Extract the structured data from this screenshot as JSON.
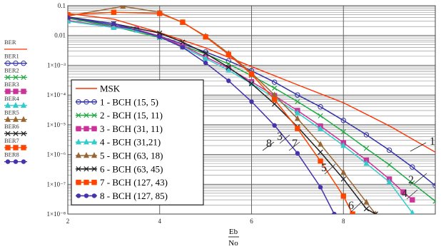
{
  "chart_data": {
    "type": "line",
    "title": "",
    "xlabel_numerator": "Eb",
    "xlabel_denominator": "No",
    "ylabel": "",
    "x_scale": "linear",
    "y_scale": "log",
    "xlim": [
      2,
      10
    ],
    "ylim": [
      1e-08,
      0.1
    ],
    "grid": true,
    "x_ticks": [
      2,
      4,
      6,
      8
    ],
    "x_tick_labels": [
      "2",
      "4",
      "6",
      "8"
    ],
    "y_ticks": [
      0.1,
      0.01,
      0.001,
      0.0001,
      1e-05,
      1e-06,
      1e-07,
      1e-08
    ],
    "y_tick_labels": [
      "0.1",
      "0.01",
      "1×10⁻³",
      "1×10⁻⁴",
      "1×10⁻⁵",
      "1×10⁻⁶",
      "1×10⁻⁷",
      "1×10⁻⁸"
    ],
    "legend_position": "lower-left",
    "left_labels": [
      "BER",
      "BER1",
      "BER2",
      "BER3",
      "BER4",
      "BER5",
      "BER6",
      "BER7",
      "BER8"
    ],
    "series": [
      {
        "name": "MSK",
        "color": "#ff3300",
        "marker": "none",
        "curve_label": "",
        "points": [
          [
            2,
            0.055
          ],
          [
            3,
            0.0355
          ],
          [
            4,
            0.0125
          ],
          [
            5,
            0.0038
          ],
          [
            6,
            0.0009
          ],
          [
            7,
            0.00022
          ],
          [
            8,
            5.5e-05
          ],
          [
            9,
            9.2e-06
          ],
          [
            10,
            1.2e-06
          ]
        ]
      },
      {
        "name": "1 - BCH (15, 5)",
        "color": "#3333aa",
        "marker": "circle",
        "curve_label": "1",
        "points": [
          [
            2,
            0.04
          ],
          [
            3,
            0.022
          ],
          [
            4,
            0.0095
          ],
          [
            5,
            0.0028
          ],
          [
            5.5,
            0.0014
          ],
          [
            6,
            0.00065
          ],
          [
            6.5,
            0.00027
          ],
          [
            7,
            0.0001
          ],
          [
            7.5,
            4e-05
          ],
          [
            8,
            1.4e-05
          ],
          [
            8.5,
            4.6e-06
          ],
          [
            9,
            1.4e-06
          ],
          [
            9.5,
            3.8e-07
          ],
          [
            10,
            9e-08
          ]
        ]
      },
      {
        "name": "2 - BCH (15, 11)",
        "color": "#22aa44",
        "marker": "x",
        "curve_label": "2",
        "points": [
          [
            2,
            0.038
          ],
          [
            3,
            0.02
          ],
          [
            4,
            0.0085
          ],
          [
            5,
            0.0024
          ],
          [
            5.5,
            0.0011
          ],
          [
            6,
            0.00045
          ],
          [
            6.5,
            0.00017
          ],
          [
            7,
            6e-05
          ],
          [
            7.5,
            2e-05
          ],
          [
            8,
            5.8e-06
          ],
          [
            8.5,
            1.6e-06
          ],
          [
            9,
            4.5e-07
          ],
          [
            9.5,
            1.1e-07
          ],
          [
            10,
            2.7e-08
          ]
        ]
      },
      {
        "name": "3 - BCH (31, 11)",
        "color": "#cc3399",
        "marker": "square",
        "curve_label": "3",
        "points": [
          [
            2,
            0.032
          ],
          [
            3,
            0.019
          ],
          [
            3.5,
            0.016
          ],
          [
            4,
            0.0095
          ],
          [
            4.5,
            0.0045
          ],
          [
            5,
            0.0019
          ],
          [
            5.5,
            0.0008
          ],
          [
            6,
            0.00028
          ],
          [
            6.5,
            9.5e-05
          ],
          [
            7,
            3e-05
          ],
          [
            7.5,
            9e-06
          ],
          [
            8,
            2.5e-06
          ],
          [
            8.5,
            6.5e-07
          ],
          [
            9,
            1.5e-07
          ],
          [
            9.3,
            5.5e-08
          ],
          [
            9.5,
            3e-08
          ]
        ]
      },
      {
        "name": "4 - BCH (31,21)",
        "color": "#33cccc",
        "marker": "triangle",
        "curve_label": "4",
        "points": [
          [
            2,
            0.03
          ],
          [
            3,
            0.0185
          ],
          [
            3.5,
            0.015
          ],
          [
            4,
            0.0088
          ],
          [
            4.5,
            0.004
          ],
          [
            5,
            0.0017
          ],
          [
            5.5,
            0.00068
          ],
          [
            6,
            0.00024
          ],
          [
            6.5,
            8e-05
          ],
          [
            7,
            2.5e-05
          ],
          [
            7.5,
            7.3e-06
          ],
          [
            8,
            2e-06
          ],
          [
            8.5,
            5e-07
          ],
          [
            9,
            1.2e-07
          ],
          [
            9.5,
            1.1e-08
          ]
        ]
      },
      {
        "name": "5 - BCH (63, 18)",
        "color": "#996633",
        "marker": "triangle",
        "curve_label": "5",
        "points": [
          [
            2,
            0.045
          ],
          [
            3.2,
            0.095
          ],
          [
            4,
            0.06
          ],
          [
            4.5,
            0.027
          ],
          [
            5,
            0.0095
          ],
          [
            5.5,
            0.0025
          ],
          [
            6,
            0.00055
          ],
          [
            6.5,
            0.0001
          ],
          [
            7,
            1.6e-05
          ],
          [
            7.5,
            2.2e-06
          ],
          [
            8,
            2.5e-07
          ],
          [
            8.5,
            2.5e-08
          ],
          [
            8.7,
            1e-08
          ]
        ]
      },
      {
        "name": "6 - BCH (63, 45)",
        "color": "#222222",
        "marker": "x",
        "curve_label": "6",
        "points": [
          [
            2,
            0.042
          ],
          [
            3,
            0.025
          ],
          [
            4,
            0.012
          ],
          [
            4.5,
            0.006
          ],
          [
            5,
            0.0025
          ],
          [
            5.5,
            0.00085
          ],
          [
            6,
            0.00024
          ],
          [
            6.5,
            5e-05
          ],
          [
            7,
            8.5e-06
          ],
          [
            7.5,
            1.2e-06
          ],
          [
            8,
            1.5e-07
          ],
          [
            8.5,
            1.5e-08
          ],
          [
            8.7,
            1e-08
          ]
        ]
      },
      {
        "name": "7 - BCH (127, 43)",
        "color": "#ff4400",
        "marker": "square",
        "curve_label": "7",
        "points": [
          [
            2,
            0.05
          ],
          [
            3,
            0.06
          ],
          [
            4,
            0.055
          ],
          [
            4.5,
            0.028
          ],
          [
            5,
            0.009
          ],
          [
            5.5,
            0.0023
          ],
          [
            6,
            0.0005
          ],
          [
            6.5,
            7e-05
          ],
          [
            7,
            7.5e-06
          ],
          [
            7.5,
            6e-07
          ],
          [
            8,
            4e-08
          ],
          [
            8.2,
            1e-08
          ]
        ]
      },
      {
        "name": "8 - BCH (127, 85)",
        "color": "#4433aa",
        "marker": "dot",
        "curve_label": "8",
        "points": [
          [
            2,
            0.04
          ],
          [
            3,
            0.025
          ],
          [
            4,
            0.009
          ],
          [
            4.5,
            0.004
          ],
          [
            5,
            0.0012
          ],
          [
            5.5,
            0.0003
          ],
          [
            6,
            6e-05
          ],
          [
            6.5,
            9.5e-06
          ],
          [
            7,
            1.1e-06
          ],
          [
            7.5,
            8e-08
          ],
          [
            7.8,
            1e-08
          ]
        ]
      }
    ]
  }
}
